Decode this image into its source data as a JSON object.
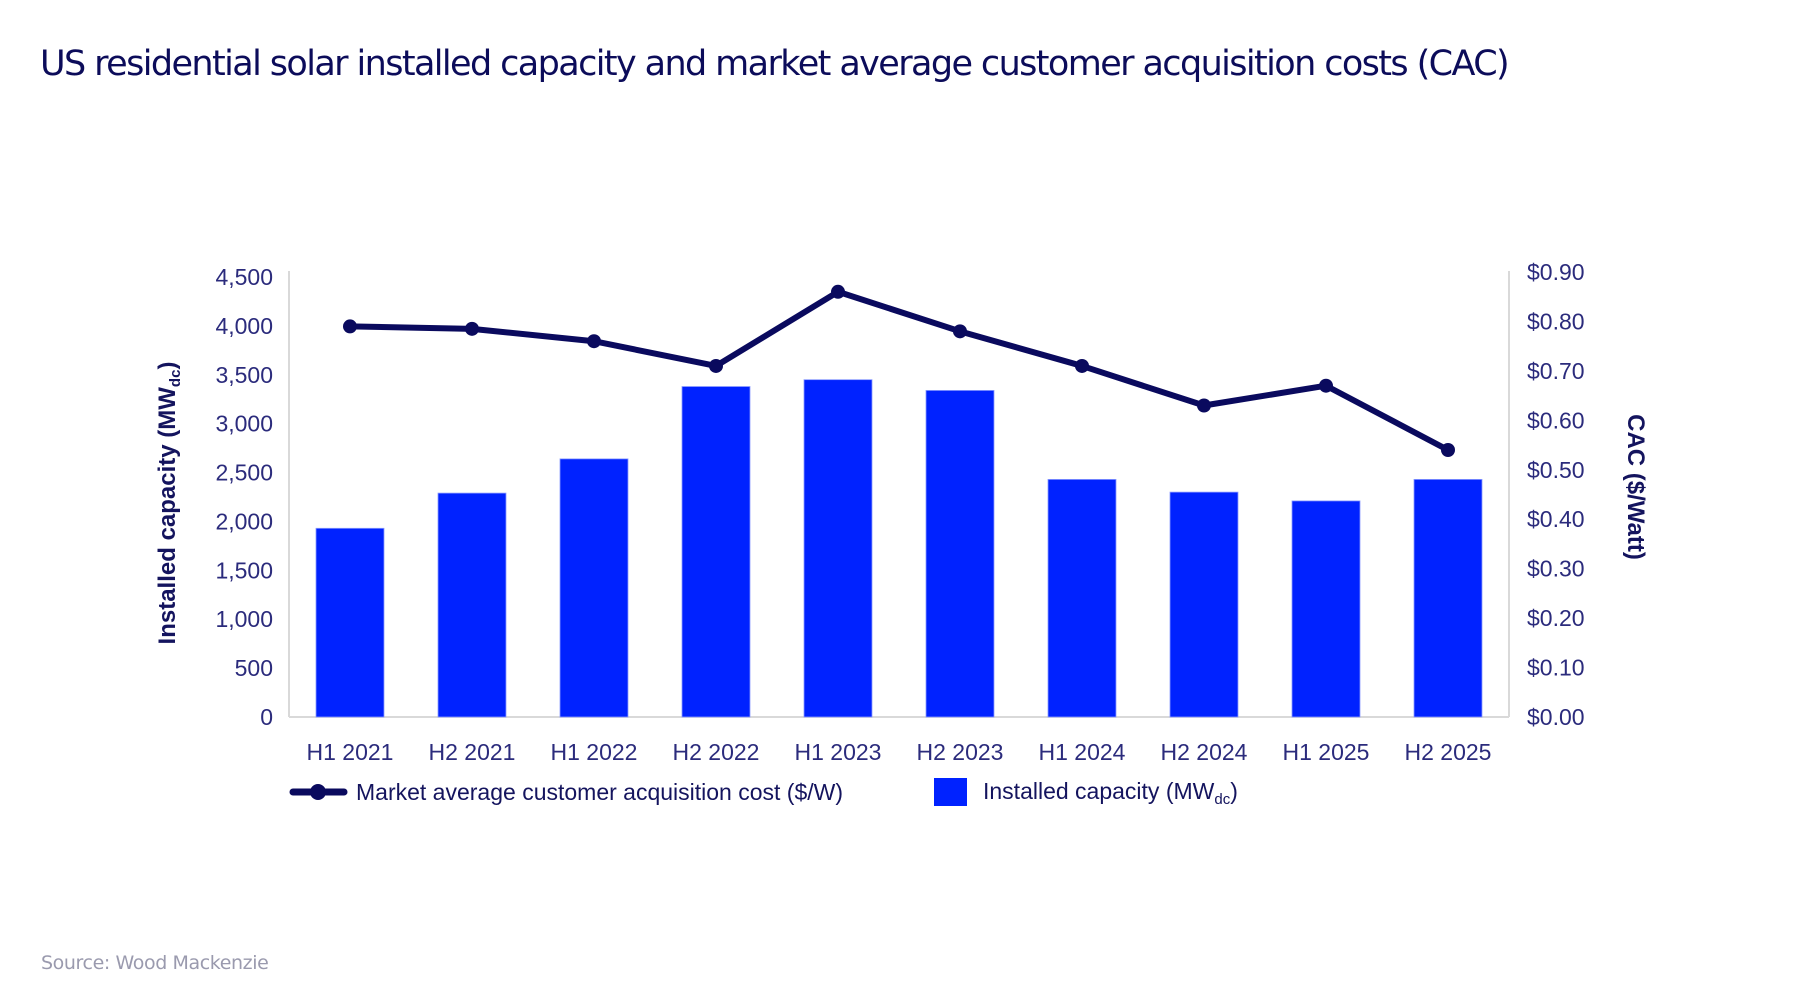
{
  "header": {
    "title": "US residential solar installed capacity and market average customer acquisition costs (CAC)"
  },
  "footer": {
    "source": "Source: Wood Mackenzie"
  },
  "colors": {
    "bar": "#0022ff",
    "line": "#0a0a5e",
    "axis": "#d9d9d9",
    "title": "#0c0c5a",
    "tick": "#2b2b7c"
  },
  "chart_data": {
    "type": "bar",
    "title": "US residential solar installed capacity and market average customer acquisition costs (CAC)",
    "categories": [
      "H1 2021",
      "H2 2021",
      "H1 2022",
      "H2 2022",
      "H1 2023",
      "H2 2023",
      "H1 2024",
      "H2 2024",
      "H1 2025",
      "H2 2025"
    ],
    "series": [
      {
        "name": "Installed capacity (MWdc)",
        "legend_main": "Installed capacity (MW",
        "legend_sub": "dc",
        "legend_end": ")",
        "type": "bar",
        "axis": "left",
        "values": [
          1930,
          2290,
          2640,
          3380,
          3450,
          3340,
          2430,
          2300,
          2210,
          2430
        ]
      },
      {
        "name": "Market average customer acquisition cost ($/W)",
        "legend_main": "Market average customer acquisition cost ($/W)",
        "type": "line",
        "axis": "right",
        "values": [
          0.79,
          0.785,
          0.76,
          0.71,
          0.86,
          0.78,
          0.71,
          0.63,
          0.67,
          0.54
        ]
      }
    ],
    "y_left": {
      "label_main": "Installed capacity (MW",
      "label_sub": "dc",
      "label_end": ")",
      "ylim": [
        0,
        4500
      ],
      "ticks": [
        0,
        500,
        1000,
        1500,
        2000,
        2500,
        3000,
        3500,
        4000,
        4500
      ],
      "tick_labels": [
        "0",
        "500",
        "1,000",
        "1,500",
        "2,000",
        "2,500",
        "3,000",
        "3,500",
        "4,000",
        "4,500"
      ]
    },
    "y_right": {
      "label": "CAC ($/Watt)",
      "ylim": [
        0,
        0.9
      ],
      "ticks": [
        0,
        0.1,
        0.2,
        0.3,
        0.4,
        0.5,
        0.6,
        0.7,
        0.8,
        0.9
      ],
      "tick_labels": [
        "$0.00",
        "$0.10",
        "$0.20",
        "$0.30",
        "$0.40",
        "$0.50",
        "$0.60",
        "$0.70",
        "$0.80",
        "$0.90"
      ]
    },
    "xlabel": "",
    "grid": false,
    "legend_position": "bottom"
  }
}
